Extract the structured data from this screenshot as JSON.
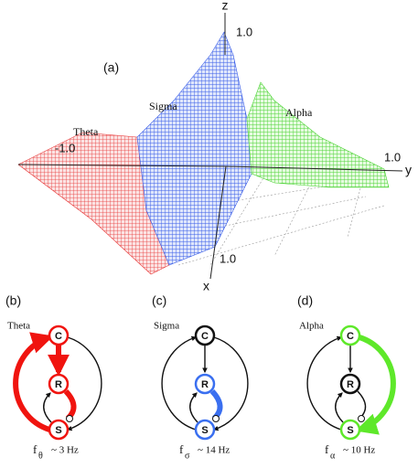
{
  "panel_a": {
    "label": "(a)",
    "axis_z": "z",
    "axis_y": "y",
    "axis_x": "x",
    "tick_z": "1.0",
    "tick_y": "1.0",
    "tick_x": "1.0",
    "tick_neg": "-1.0",
    "region_theta": "Theta",
    "region_sigma": "Sigma",
    "region_alpha": "Alpha"
  },
  "panels": [
    {
      "label": "(b)",
      "name": "Theta",
      "nodes": [
        "C",
        "R",
        "S"
      ],
      "freq_symbol": "f",
      "freq_subscript": "θ",
      "freq_value": "~ 3 Hz"
    },
    {
      "label": "(c)",
      "name": "Sigma",
      "nodes": [
        "C",
        "R",
        "S"
      ],
      "freq_symbol": "f",
      "freq_subscript": "σ",
      "freq_value": "~ 14 Hz"
    },
    {
      "label": "(d)",
      "name": "Alpha",
      "nodes": [
        "C",
        "R",
        "S"
      ],
      "freq_symbol": "f",
      "freq_subscript": "α",
      "freq_value": "~ 10 Hz"
    }
  ]
}
